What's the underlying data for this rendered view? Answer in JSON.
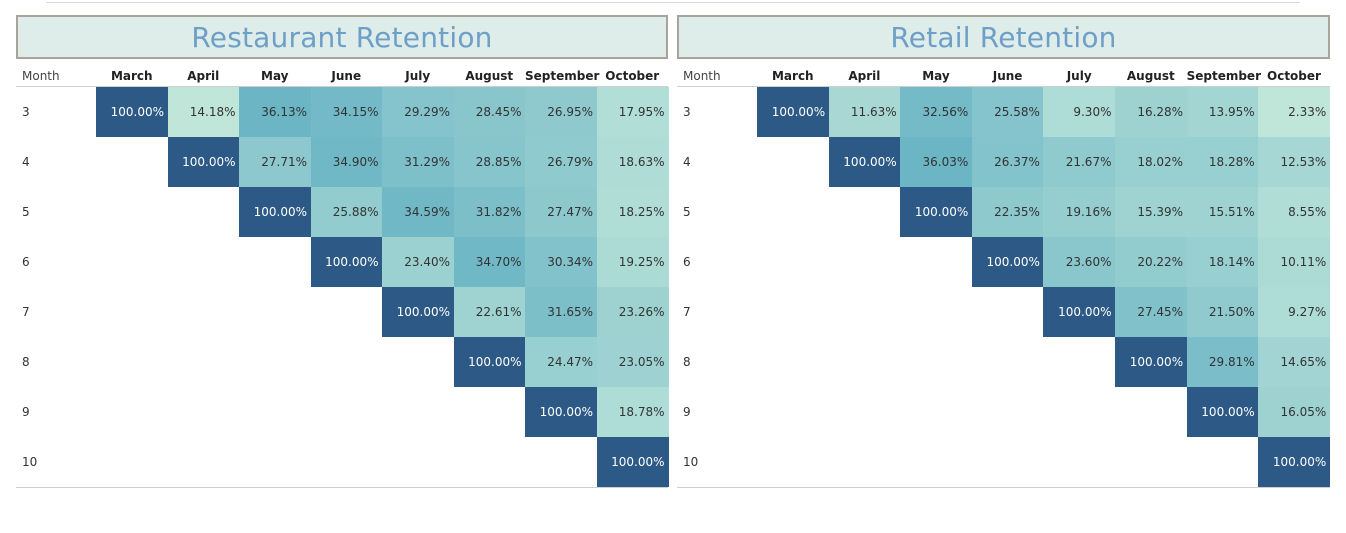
{
  "chart_data": [
    {
      "type": "heatmap",
      "title": "Restaurant Retention",
      "row_header": "Month",
      "columns": [
        "March",
        "April",
        "May",
        "June",
        "July",
        "August",
        "September",
        "October"
      ],
      "rows": [
        "3",
        "4",
        "5",
        "6",
        "7",
        "8",
        "9",
        "10"
      ],
      "values": [
        [
          "100.00%",
          "14.18%",
          "36.13%",
          "34.15%",
          "29.29%",
          "28.45%",
          "26.95%",
          "17.95%"
        ],
        [
          null,
          "100.00%",
          "27.71%",
          "34.90%",
          "31.29%",
          "28.85%",
          "26.79%",
          "18.63%"
        ],
        [
          null,
          null,
          "100.00%",
          "25.88%",
          "34.59%",
          "31.82%",
          "27.47%",
          "18.25%"
        ],
        [
          null,
          null,
          null,
          "100.00%",
          "23.40%",
          "34.70%",
          "30.34%",
          "19.25%"
        ],
        [
          null,
          null,
          null,
          null,
          "100.00%",
          "22.61%",
          "31.65%",
          "23.26%"
        ],
        [
          null,
          null,
          null,
          null,
          null,
          "100.00%",
          "24.47%",
          "23.05%"
        ],
        [
          null,
          null,
          null,
          null,
          null,
          null,
          "100.00%",
          "18.78%"
        ],
        [
          null,
          null,
          null,
          null,
          null,
          null,
          null,
          "100.00%"
        ]
      ]
    },
    {
      "type": "heatmap",
      "title": "Retail Retention",
      "row_header": "Month",
      "columns": [
        "March",
        "April",
        "May",
        "June",
        "July",
        "August",
        "September",
        "October"
      ],
      "rows": [
        "3",
        "4",
        "5",
        "6",
        "7",
        "8",
        "9",
        "10"
      ],
      "values": [
        [
          "100.00%",
          "11.63%",
          "32.56%",
          "25.58%",
          "9.30%",
          "16.28%",
          "13.95%",
          "2.33%"
        ],
        [
          null,
          "100.00%",
          "36.03%",
          "26.37%",
          "21.67%",
          "18.02%",
          "18.28%",
          "12.53%"
        ],
        [
          null,
          null,
          "100.00%",
          "22.35%",
          "19.16%",
          "15.39%",
          "15.51%",
          "8.55%"
        ],
        [
          null,
          null,
          null,
          "100.00%",
          "23.60%",
          "20.22%",
          "18.14%",
          "10.11%"
        ],
        [
          null,
          null,
          null,
          null,
          "100.00%",
          "27.45%",
          "21.50%",
          "9.27%"
        ],
        [
          null,
          null,
          null,
          null,
          null,
          "100.00%",
          "29.81%",
          "14.65%"
        ],
        [
          null,
          null,
          null,
          null,
          null,
          null,
          "100.00%",
          "16.05%"
        ],
        [
          null,
          null,
          null,
          null,
          null,
          null,
          null,
          "100.00%"
        ]
      ]
    }
  ],
  "colors": {
    "diagonal": "#2c5985",
    "scale_low": "#c0e6da",
    "scale_high": "#6bb5c5",
    "title_text": "#6d9fc7",
    "title_bg": "#deecea",
    "title_border": "#a7a59b"
  }
}
